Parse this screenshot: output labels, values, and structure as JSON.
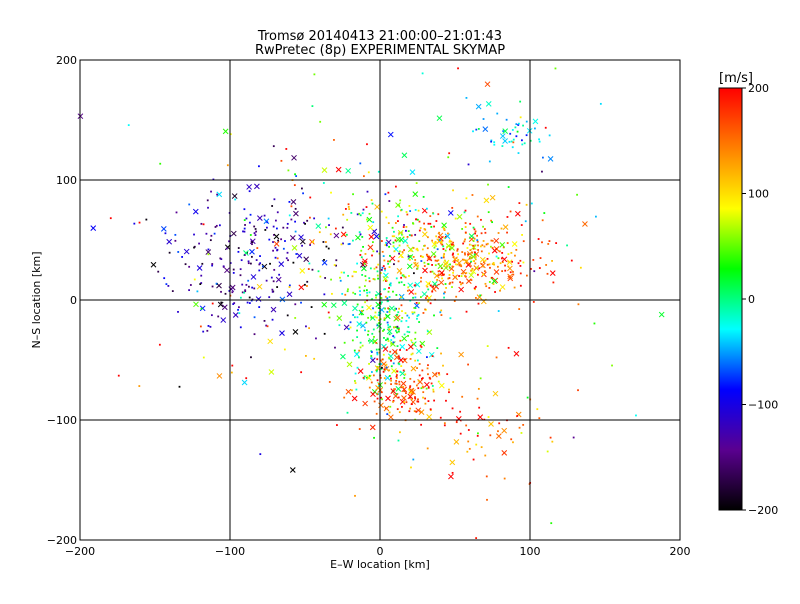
{
  "chart_data": {
    "type": "scatter",
    "title": "Tromsø 20140413 21:00:00–21:01:43",
    "subtitle": "RwPretec (8p) EXPERIMENTAL SKYMAP",
    "xlabel": "E–W location [km]",
    "ylabel": "N–S location [km]",
    "xlim": [
      -200,
      200
    ],
    "ylim": [
      -200,
      200
    ],
    "xticks": [
      "−200",
      "−100",
      "0",
      "100",
      "200"
    ],
    "yticks": [
      "200",
      "100",
      "0",
      "−100",
      "−200"
    ],
    "grid": true,
    "colorbar": {
      "unit": "[m/s]",
      "range": [
        -200,
        200
      ],
      "ticks": [
        "200",
        "100",
        "0",
        "−100",
        "−200"
      ],
      "colors": [
        "#000000",
        "#5a0090",
        "#0000ff",
        "#00ffff",
        "#00ff00",
        "#ffff00",
        "#ff8000",
        "#ff0000"
      ]
    },
    "clusters": [
      {
        "label": "north-west blue region",
        "cx": -85,
        "cy": 35,
        "sx": 30,
        "sy": 30,
        "count": 260,
        "vmean": -130,
        "vspread": 45
      },
      {
        "label": "east red region",
        "cx": 55,
        "cy": 35,
        "sx": 25,
        "sy": 18,
        "count": 360,
        "vmean": 150,
        "vspread": 45
      },
      {
        "label": "central green column",
        "cx": 5,
        "cy": -25,
        "sx": 14,
        "sy": 28,
        "count": 260,
        "vmean": 10,
        "vspread": 45
      },
      {
        "label": "southern red region",
        "cx": 15,
        "cy": -70,
        "sx": 16,
        "sy": 18,
        "count": 180,
        "vmean": 160,
        "vspread": 40
      },
      {
        "label": "north-east cyan region",
        "cx": 90,
        "cy": 140,
        "sx": 15,
        "sy": 12,
        "count": 50,
        "vmean": -30,
        "vspread": 30
      },
      {
        "label": "central mixed region",
        "cx": 5,
        "cy": 40,
        "sx": 30,
        "sy": 30,
        "count": 240,
        "vmean": 80,
        "vspread": 90
      },
      {
        "label": "south-east orange region",
        "cx": 70,
        "cy": -110,
        "sx": 25,
        "sy": 25,
        "count": 60,
        "vmean": 150,
        "vspread": 50
      },
      {
        "label": "sparse background",
        "cx": 0,
        "cy": 20,
        "sx": 95,
        "sy": 85,
        "count": 170,
        "vmean": 40,
        "vspread": 130
      }
    ]
  }
}
